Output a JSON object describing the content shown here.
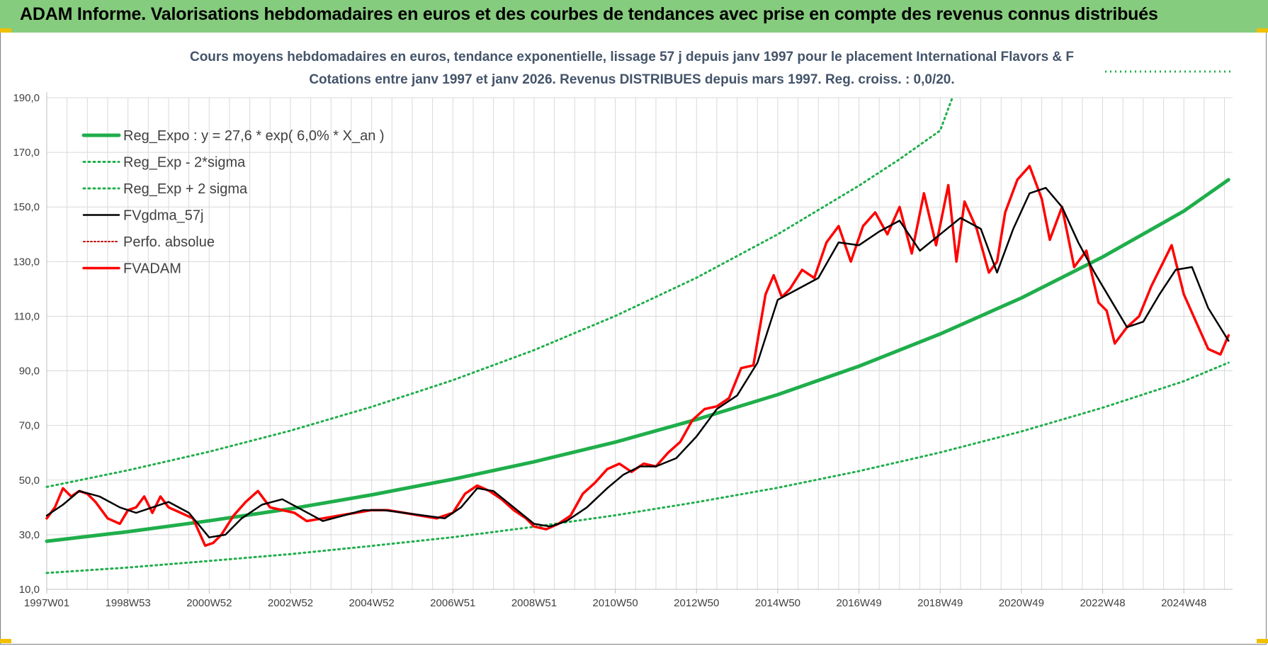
{
  "header": {
    "title": "ADAM Informe. Valorisations hebdomadaires en euros et des courbes de tendances avec prise en compte des revenus connus distribués"
  },
  "colors": {
    "header_bg": "#86cc7e",
    "reg": "#1fae4b",
    "ma": "#000000",
    "price": "#ff0000",
    "perf": "#c00000",
    "grid": "#d9d9d9"
  },
  "chart_data": {
    "type": "line",
    "title": "Cours moyens hebdomadaires en euros, tendance exponentielle, lissage 57 j depuis janv 1997  pour le placement International Flavors & F",
    "subtitle": "Cotations entre janv 1997 et janv 2026. Revenus DISTRIBUES depuis mars 1997.  Reg. croiss. : 0,0/20.",
    "xlabel": "",
    "ylabel": "",
    "ylim": [
      10,
      190
    ],
    "xlim": [
      1997.0,
      2026.2
    ],
    "y_ticks": [
      "190,0",
      "170,0",
      "150,0",
      "130,0",
      "110,0",
      "90,0",
      "70,0",
      "50,0",
      "30,0",
      "10,0"
    ],
    "x_ticks": [
      {
        "label": "1997W01",
        "x": 1997.0
      },
      {
        "label": "1998W53",
        "x": 1999.0
      },
      {
        "label": "2000W52",
        "x": 2001.0
      },
      {
        "label": "2002W52",
        "x": 2003.0
      },
      {
        "label": "2004W52",
        "x": 2005.0
      },
      {
        "label": "2006W51",
        "x": 2007.0
      },
      {
        "label": "2008W51",
        "x": 2009.0
      },
      {
        "label": "2010W50",
        "x": 2011.0
      },
      {
        "label": "2012W50",
        "x": 2013.0
      },
      {
        "label": "2014W50",
        "x": 2015.0
      },
      {
        "label": "2016W49",
        "x": 2017.0
      },
      {
        "label": "2018W49",
        "x": 2019.0
      },
      {
        "label": "2020W49",
        "x": 2021.0
      },
      {
        "label": "2022W48",
        "x": 2023.0
      },
      {
        "label": "2024W48",
        "x": 2025.0
      }
    ],
    "grid": true,
    "legend_position": "top-left",
    "series": [
      {
        "name": "Reg_Expo : y = 27,6 * exp( 6,0% *  X_an )",
        "style": "solid-thick",
        "x": [
          1997.0,
          1999.0,
          2001.0,
          2003.0,
          2005.0,
          2007.0,
          2009.0,
          2011.0,
          2013.0,
          2015.0,
          2017.0,
          2019.0,
          2021.0,
          2023.0,
          2025.0,
          2026.1
        ],
        "y": [
          27.6,
          31.1,
          35.1,
          39.5,
          44.6,
          50.3,
          56.7,
          63.9,
          72.2,
          81.3,
          91.7,
          103.5,
          116.7,
          131.7,
          148.5,
          160.0
        ]
      },
      {
        "name": "Reg_Exp - 2*sigma",
        "style": "dotted",
        "x": [
          1997.0,
          1999.0,
          2001.0,
          2003.0,
          2005.0,
          2007.0,
          2009.0,
          2011.0,
          2013.0,
          2015.0,
          2017.0,
          2019.0,
          2021.0,
          2023.0,
          2025.0,
          2026.1
        ],
        "y": [
          16.0,
          18.0,
          20.4,
          22.9,
          25.9,
          29.1,
          32.9,
          37.1,
          41.9,
          47.2,
          53.3,
          60.1,
          67.8,
          76.5,
          86.2,
          93.0
        ]
      },
      {
        "name": "Reg_Exp + 2 sigma",
        "style": "dotted",
        "x": [
          1997.0,
          1999.0,
          2001.0,
          2003.0,
          2005.0,
          2007.0,
          2009.0,
          2011.0,
          2013.0,
          2015.0,
          2017.0,
          2018.0,
          2019.0,
          2019.3
        ],
        "y": [
          47.5,
          53.6,
          60.4,
          68.1,
          76.8,
          86.6,
          97.6,
          110.1,
          124.1,
          140.0,
          157.8,
          167.5,
          178.0,
          190.0
        ]
      },
      {
        "name": "FVgdma_57j",
        "style": "solid",
        "x": [
          1997.0,
          1997.4,
          1997.8,
          1998.3,
          1998.8,
          1999.2,
          1999.6,
          2000.0,
          2000.5,
          2001.0,
          2001.4,
          2001.8,
          2002.3,
          2002.8,
          2003.3,
          2003.8,
          2004.3,
          2004.8,
          2005.3,
          2005.8,
          2006.3,
          2006.8,
          2007.2,
          2007.6,
          2008.0,
          2008.5,
          2009.0,
          2009.4,
          2009.8,
          2010.3,
          2010.8,
          2011.2,
          2011.6,
          2012.0,
          2012.5,
          2013.0,
          2013.5,
          2014.0,
          2014.5,
          2015.0,
          2015.5,
          2016.0,
          2016.5,
          2017.0,
          2017.5,
          2018.0,
          2018.5,
          2019.0,
          2019.5,
          2020.0,
          2020.4,
          2020.8,
          2021.2,
          2021.6,
          2022.0,
          2022.4,
          2022.8,
          2023.2,
          2023.6,
          2024.0,
          2024.4,
          2024.8,
          2025.2,
          2025.6,
          2026.1
        ],
        "y": [
          37,
          41,
          46,
          44,
          40,
          38,
          40,
          42,
          38,
          29,
          30,
          36,
          41,
          43,
          39,
          35,
          37,
          39,
          39,
          38,
          37,
          36,
          40,
          47,
          46,
          40,
          34,
          33,
          35,
          40,
          47,
          52,
          55,
          55,
          58,
          66,
          76,
          81,
          93,
          116,
          120,
          124,
          137,
          136,
          141,
          145,
          134,
          140,
          146,
          142,
          126,
          142,
          155,
          157,
          150,
          137,
          126,
          116,
          106,
          108,
          118,
          127,
          128,
          113,
          101
        ]
      },
      {
        "name": "Perfo. absolue",
        "style": "dotted",
        "x": [],
        "y": []
      },
      {
        "name": "FVADAM",
        "style": "solid-thick",
        "x": [
          1997.0,
          1997.2,
          1997.4,
          1997.6,
          1997.8,
          1998.0,
          1998.2,
          1998.5,
          1998.8,
          1999.0,
          1999.2,
          1999.4,
          1999.6,
          1999.8,
          2000.0,
          2000.3,
          2000.6,
          2000.9,
          2001.1,
          2001.3,
          2001.6,
          2001.9,
          2002.2,
          2002.5,
          2002.8,
          2003.1,
          2003.4,
          2003.8,
          2004.2,
          2004.6,
          2005.0,
          2005.4,
          2005.8,
          2006.2,
          2006.6,
          2007.0,
          2007.3,
          2007.6,
          2007.9,
          2008.2,
          2008.5,
          2008.8,
          2009.0,
          2009.3,
          2009.6,
          2009.9,
          2010.2,
          2010.5,
          2010.8,
          2011.1,
          2011.4,
          2011.7,
          2012.0,
          2012.3,
          2012.6,
          2012.9,
          2013.2,
          2013.5,
          2013.8,
          2014.1,
          2014.4,
          2014.7,
          2014.9,
          2015.1,
          2015.3,
          2015.6,
          2015.9,
          2016.2,
          2016.5,
          2016.8,
          2017.1,
          2017.4,
          2017.7,
          2018.0,
          2018.3,
          2018.6,
          2018.9,
          2019.2,
          2019.4,
          2019.6,
          2019.9,
          2020.2,
          2020.4,
          2020.6,
          2020.9,
          2021.2,
          2021.5,
          2021.7,
          2022.0,
          2022.3,
          2022.6,
          2022.9,
          2023.1,
          2023.3,
          2023.6,
          2023.9,
          2024.2,
          2024.5,
          2024.7,
          2025.0,
          2025.3,
          2025.6,
          2025.9,
          2026.1
        ],
        "y": [
          36,
          40,
          47,
          44,
          46,
          45,
          42,
          36,
          34,
          39,
          40,
          44,
          38,
          44,
          40,
          38,
          36,
          26,
          27,
          30,
          37,
          42,
          46,
          40,
          39,
          38,
          35,
          36,
          37,
          38,
          39,
          39,
          38,
          37,
          36,
          38,
          45,
          48,
          46,
          43,
          39,
          36,
          33,
          32,
          34,
          37,
          45,
          49,
          54,
          56,
          53,
          56,
          55,
          60,
          64,
          72,
          76,
          77,
          80,
          91,
          92,
          118,
          125,
          117,
          120,
          127,
          124,
          137,
          143,
          130,
          143,
          148,
          140,
          150,
          133,
          155,
          136,
          158,
          130,
          152,
          142,
          126,
          130,
          148,
          160,
          165,
          153,
          138,
          150,
          128,
          134,
          115,
          112,
          100,
          106,
          110,
          121,
          130,
          136,
          118,
          108,
          98,
          96,
          103
        ]
      }
    ]
  }
}
